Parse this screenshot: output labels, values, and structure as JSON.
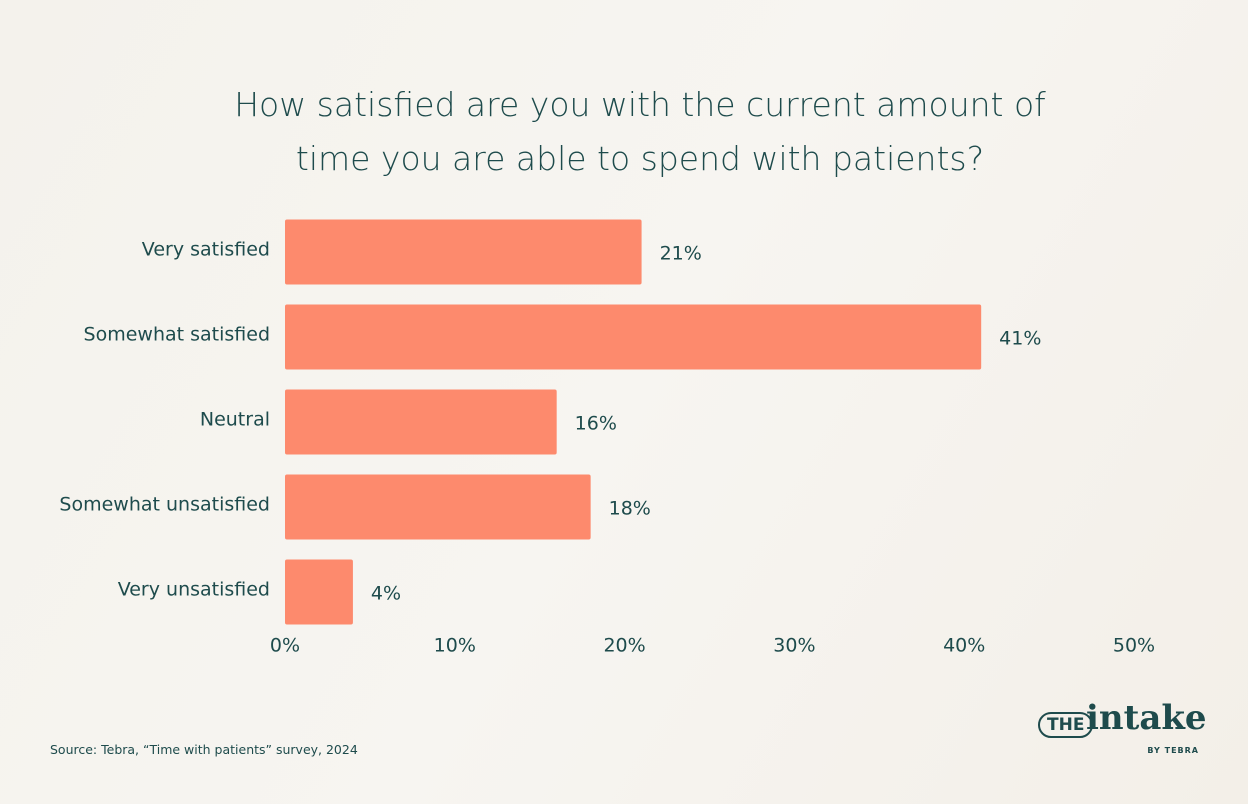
{
  "chart_data": {
    "type": "hbar",
    "title": "How satisfied are you with the current amount of time you are able to spend with patients?",
    "categories": [
      "Very satisfied",
      "Somewhat satisfied",
      "Neutral",
      "Somewhat unsatisfied",
      "Very unsatisfied"
    ],
    "values": [
      21,
      41,
      16,
      18,
      4
    ],
    "value_labels": [
      "21%",
      "41%",
      "16%",
      "18%",
      "4%"
    ],
    "color": "#fd8a6d",
    "xlim": [
      0,
      50
    ],
    "xticks": [
      {
        "value": 0,
        "label": "0%"
      },
      {
        "value": 10,
        "label": "10%"
      },
      {
        "value": 20,
        "label": "20%"
      },
      {
        "value": 30,
        "label": "30%"
      },
      {
        "value": 40,
        "label": "40%"
      },
      {
        "value": 50,
        "label": "50%"
      }
    ],
    "grid": false,
    "source": "Source: Tebra, “Time with patients” survey, 2024",
    "logo": {
      "the": "THE",
      "intake": "intake",
      "by": "BY TEBRA"
    }
  }
}
